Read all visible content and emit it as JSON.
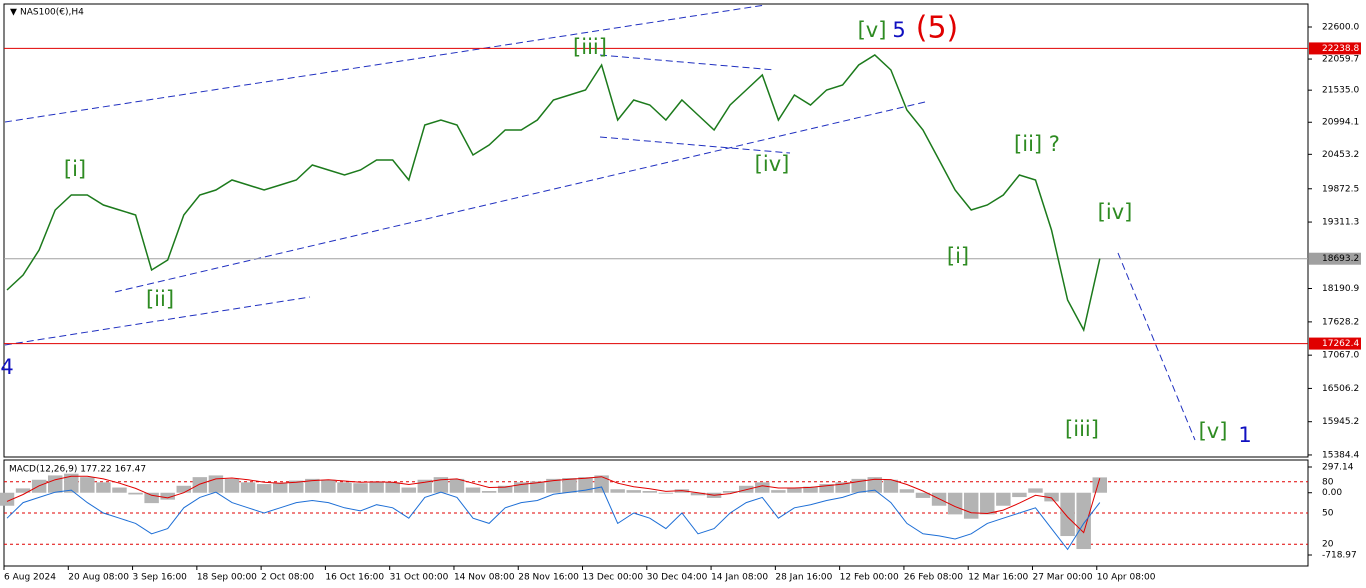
{
  "symbol": "NAS100(€),H4",
  "chart_data": {
    "type": "line",
    "categories": [
      "6 Aug 2024",
      null,
      null,
      null,
      "20 Aug 08:00",
      null,
      null,
      null,
      "3 Sep 16:00",
      null,
      null,
      null,
      "18 Sep 00:00",
      null,
      null,
      null,
      "2 Oct 08:00",
      null,
      null,
      null,
      "16 Oct 16:00",
      null,
      null,
      null,
      "31 Oct 00:00",
      null,
      null,
      null,
      "14 Nov 08:00",
      null,
      null,
      null,
      "28 Nov 16:00",
      null,
      null,
      null,
      "13 Dec 00:00",
      null,
      null,
      null,
      "30 Dec 04:00",
      null,
      null,
      null,
      "14 Jan 08:00",
      null,
      null,
      null,
      "28 Jan 16:00",
      null,
      null,
      null,
      "12 Feb 00:00",
      null,
      null,
      null,
      "26 Feb 08:00",
      null,
      null,
      null,
      "12 Mar 16:00",
      null,
      null,
      null,
      "27 Mar 00:00",
      null,
      null,
      null,
      "10 Apr 08:00"
    ],
    "series": [
      {
        "name": "NAS100",
        "color": "#1c7a1c",
        "values": [
          18166,
          18419,
          18840,
          19515,
          19768,
          19768,
          19599,
          19515,
          19430,
          18503,
          18672,
          19430,
          19768,
          19852,
          20020,
          19936,
          19852,
          19936,
          20020,
          20273,
          20189,
          20105,
          20189,
          20358,
          20358,
          20020,
          20948,
          21032,
          20948,
          20442,
          20611,
          20863,
          20863,
          21032,
          21369,
          21454,
          21538,
          21959,
          21032,
          21369,
          21285,
          21032,
          21369,
          21116,
          20863,
          21285,
          21538,
          21791,
          21032,
          21454,
          21285,
          21538,
          21622,
          21959,
          22128,
          21875,
          21201,
          20863,
          20358,
          19852,
          19515,
          19599,
          19768,
          20105,
          20020,
          19177,
          17997,
          17491,
          18693.2
        ]
      }
    ],
    "ylim": [
      15350,
      22971
    ],
    "yticks": [
      {
        "value": 22600,
        "label": "22600.0"
      },
      22059.7,
      {
        "value": 21535,
        "label": "21535.0"
      },
      20994.1,
      20453.2,
      19872.5,
      19311.3,
      18190.9,
      17628.2,
      {
        "value": 17067,
        "label": "17067.0"
      },
      16506.2,
      15945.2,
      15384.4
    ],
    "levels": [
      {
        "value": 22238.8,
        "color": "#e00000"
      },
      {
        "value": 18693.2,
        "color": "#a0a0a0"
      },
      {
        "value": 17262.4,
        "color": "#e00000"
      }
    ],
    "annotations": [
      {
        "text": "4",
        "color": "#1010c0"
      },
      {
        "text": "[i]",
        "color": "#2e8b22"
      },
      {
        "text": "[ii]",
        "color": "#2e8b22"
      },
      {
        "text": "[iii]",
        "color": "#2e8b22"
      },
      {
        "text": "[iv]",
        "color": "#2e8b22"
      },
      {
        "text": "[v]",
        "color": "#2e8b22"
      },
      {
        "text": "5",
        "color": "#1010c0"
      },
      {
        "text": "(5)",
        "color": "#e00000"
      },
      {
        "text": "[i]",
        "color": "#2e8b22"
      },
      {
        "text": "[ii] ?",
        "color": "#2e8b22"
      },
      {
        "text": "[iii]",
        "color": "#2e8b22"
      },
      {
        "text": "[iv]",
        "color": "#2e8b22"
      },
      {
        "text": "[v]",
        "color": "#2e8b22"
      },
      {
        "text": "1",
        "color": "#1010c0"
      }
    ]
  },
  "indicator": {
    "type": "macd",
    "title": "MACD(12,26,9) 177.22 167.47",
    "ylim": [
      -718.97,
      297.14
    ],
    "yticks": [
      297.14,
      {
        "value": 0,
        "label": "0.00"
      },
      -718.97
    ],
    "y2lim": [
      0,
      100
    ],
    "y2ticks": [
      80,
      50,
      20
    ],
    "series": [
      {
        "name": "MACD",
        "color": "#b4b4b4",
        "values": [
          -150,
          50,
          150,
          200,
          220,
          180,
          120,
          60,
          -20,
          -120,
          -80,
          80,
          180,
          200,
          160,
          120,
          100,
          110,
          140,
          160,
          150,
          120,
          110,
          130,
          120,
          60,
          150,
          180,
          160,
          60,
          20,
          80,
          120,
          130,
          160,
          170,
          180,
          200,
          40,
          30,
          20,
          -10,
          40,
          -30,
          -60,
          20,
          80,
          120,
          30,
          60,
          70,
          100,
          120,
          160,
          180,
          150,
          40,
          -60,
          -150,
          -250,
          -300,
          -250,
          -150,
          -50,
          50,
          -100,
          -500,
          -650,
          177.22
        ]
      },
      {
        "name": "Signal",
        "color": "#e00000",
        "values": [
          -100,
          -20,
          80,
          150,
          190,
          190,
          160,
          110,
          50,
          -30,
          -60,
          0,
          100,
          160,
          170,
          150,
          120,
          110,
          120,
          140,
          150,
          135,
          120,
          125,
          122,
          95,
          120,
          150,
          160,
          110,
          60,
          65,
          95,
          115,
          140,
          155,
          168,
          185,
          110,
          70,
          45,
          15,
          25,
          0,
          -30,
          -10,
          35,
          80,
          55,
          55,
          62,
          80,
          100,
          130,
          155,
          152,
          95,
          20,
          -70,
          -160,
          -230,
          -240,
          -200,
          -120,
          -30,
          -60,
          -280,
          -460,
          167.47
        ]
      },
      {
        "name": "Oscillator",
        "color": "#1e6fd6",
        "axis": "y2",
        "values": [
          45,
          60,
          65,
          70,
          72,
          60,
          50,
          45,
          40,
          30,
          35,
          55,
          65,
          70,
          60,
          55,
          50,
          55,
          60,
          62,
          60,
          55,
          52,
          58,
          55,
          45,
          65,
          70,
          65,
          45,
          40,
          55,
          60,
          62,
          68,
          70,
          72,
          75,
          40,
          50,
          45,
          35,
          50,
          30,
          35,
          50,
          60,
          65,
          45,
          55,
          58,
          62,
          65,
          70,
          72,
          60,
          40,
          30,
          28,
          25,
          30,
          40,
          45,
          50,
          55,
          35,
          15,
          40,
          60
        ]
      }
    ]
  }
}
